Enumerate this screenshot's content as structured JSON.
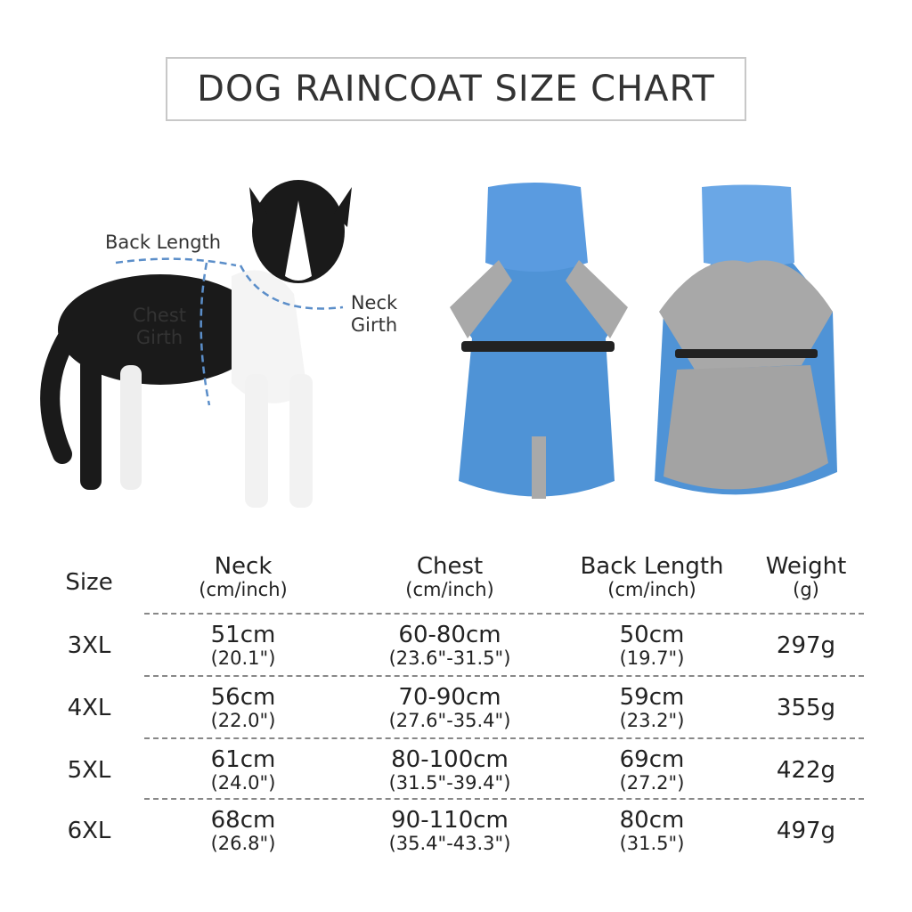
{
  "header": {
    "title": "DOG RAINCOAT SIZE CHART"
  },
  "diagram": {
    "back_length": "Back Length",
    "chest_girth": [
      "Chest",
      "Girth"
    ],
    "neck_girth": [
      "Neck",
      "Girth"
    ]
  },
  "table": {
    "columns": [
      [
        "Size"
      ],
      [
        "Neck",
        "(cm/inch)"
      ],
      [
        "Chest",
        "(cm/inch)"
      ],
      [
        "Back Length",
        "(cm/inch)"
      ],
      [
        "Weight",
        "(g)"
      ]
    ],
    "rows": [
      [
        "3XL",
        [
          "51cm",
          "(20.1\")"
        ],
        [
          "60-80cm",
          "(23.6\"-31.5\")"
        ],
        [
          "50cm",
          "(19.7\")"
        ],
        "297g"
      ],
      [
        "4XL",
        [
          "56cm",
          "(22.0\")"
        ],
        [
          "70-90cm",
          "(27.6\"-35.4\")"
        ],
        [
          "59cm",
          "(23.2\")"
        ],
        "355g"
      ],
      [
        "5XL",
        [
          "61cm",
          "(24.0\")"
        ],
        [
          "80-100cm",
          "(31.5\"-39.4\")"
        ],
        [
          "69cm",
          "(27.2\")"
        ],
        "422g"
      ],
      [
        "6XL",
        [
          "68cm",
          "(26.8\")"
        ],
        [
          "90-110cm",
          "(35.4\"-43.3\")"
        ],
        [
          "80cm",
          "(31.5\")"
        ],
        "497g"
      ]
    ]
  }
}
